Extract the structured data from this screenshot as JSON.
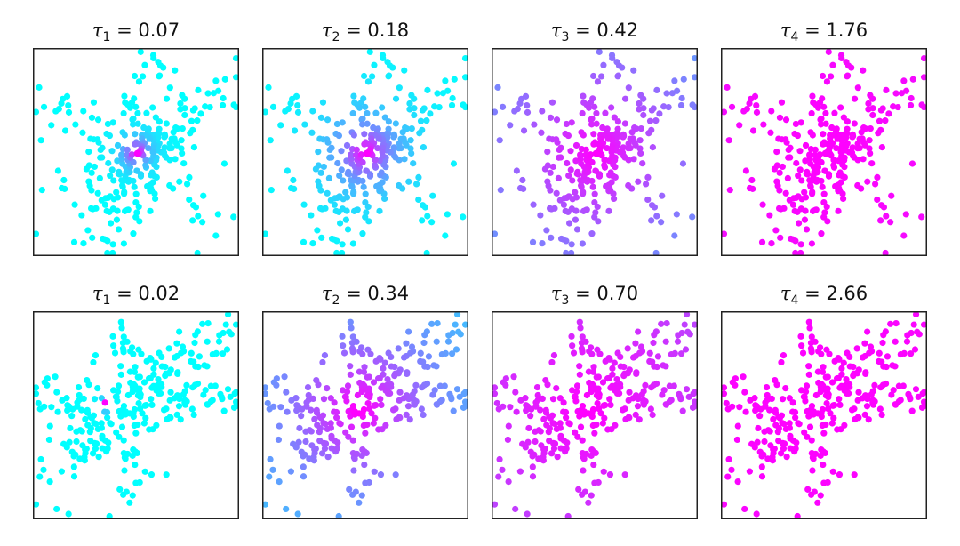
{
  "chart_data": [
    {
      "type": "scatter",
      "title_symbol": "τ",
      "subscript": "1",
      "value_text": "0.07",
      "xlim": [
        0,
        1
      ],
      "ylim": [
        0,
        1
      ],
      "axes_ticks": false,
      "grid": false,
      "colormap": [
        "#00ffff",
        "#ff00ff"
      ],
      "source": [
        0.5,
        0.5
      ],
      "temperature": 0.07
    },
    {
      "type": "scatter",
      "title_symbol": "τ",
      "subscript": "2",
      "value_text": "0.18",
      "xlim": [
        0,
        1
      ],
      "ylim": [
        0,
        1
      ],
      "axes_ticks": false,
      "grid": false,
      "colormap": [
        "#00ffff",
        "#ff00ff"
      ],
      "source": [
        0.5,
        0.5
      ],
      "temperature": 0.18
    },
    {
      "type": "scatter",
      "title_symbol": "τ",
      "subscript": "3",
      "value_text": "0.42",
      "xlim": [
        0,
        1
      ],
      "ylim": [
        0,
        1
      ],
      "axes_ticks": false,
      "grid": false,
      "colormap": [
        "#00ffff",
        "#ff00ff"
      ],
      "source": [
        0.5,
        0.5
      ],
      "temperature": 0.42
    },
    {
      "type": "scatter",
      "title_symbol": "τ",
      "subscript": "4",
      "value_text": "1.76",
      "xlim": [
        0,
        1
      ],
      "ylim": [
        0,
        1
      ],
      "axes_ticks": false,
      "grid": false,
      "colormap": [
        "#00ffff",
        "#ff00ff"
      ],
      "source": [
        0.5,
        0.5
      ],
      "temperature": 1.76
    },
    {
      "type": "scatter",
      "title_symbol": "τ",
      "subscript": "1",
      "value_text": "0.02",
      "xlim": [
        0,
        1
      ],
      "ylim": [
        0,
        1
      ],
      "axes_ticks": false,
      "grid": false,
      "colormap": [
        "#00ffff",
        "#ff00ff"
      ],
      "source": [
        0.35,
        0.55
      ],
      "temperature": 0.02
    },
    {
      "type": "scatter",
      "title_symbol": "τ",
      "subscript": "2",
      "value_text": "0.34",
      "xlim": [
        0,
        1
      ],
      "ylim": [
        0,
        1
      ],
      "axes_ticks": false,
      "grid": false,
      "colormap": [
        "#00ffff",
        "#ff00ff"
      ],
      "source": [
        0.47,
        0.53
      ],
      "temperature": 0.34
    },
    {
      "type": "scatter",
      "title_symbol": "τ",
      "subscript": "3",
      "value_text": "0.70",
      "xlim": [
        0,
        1
      ],
      "ylim": [
        0,
        1
      ],
      "axes_ticks": false,
      "grid": false,
      "colormap": [
        "#00ffff",
        "#ff00ff"
      ],
      "source": [
        0.47,
        0.53
      ],
      "temperature": 0.7
    },
    {
      "type": "scatter",
      "title_symbol": "τ",
      "subscript": "4",
      "value_text": "2.66",
      "xlim": [
        0,
        1
      ],
      "ylim": [
        0,
        1
      ],
      "axes_ticks": false,
      "grid": false,
      "colormap": [
        "#00ffff",
        "#ff00ff"
      ],
      "source": [
        0.47,
        0.53
      ],
      "temperature": 2.66
    }
  ]
}
